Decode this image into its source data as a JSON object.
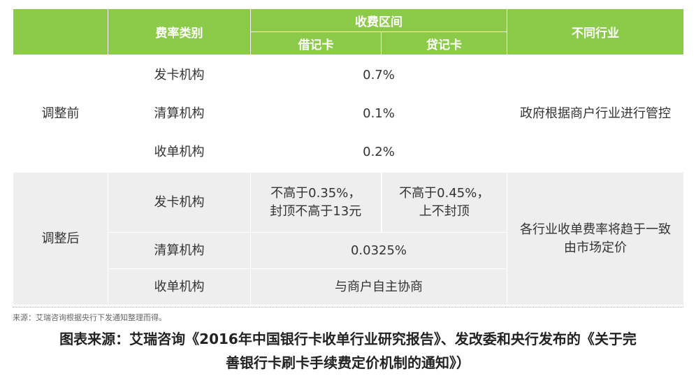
{
  "table": {
    "headers": {
      "fee_type": "费率类别",
      "fee_range": "收费区间",
      "debit": "借记卡",
      "credit": "贷记卡",
      "industry": "不同行业"
    },
    "before": {
      "label": "调整前",
      "rows": [
        {
          "org": "发卡机构",
          "rate": "0.7%"
        },
        {
          "org": "清算机构",
          "rate": "0.1%"
        },
        {
          "org": "收单机构",
          "rate": "0.2%"
        }
      ],
      "industry": "政府根据商户行业进行管控"
    },
    "after": {
      "label": "调整后",
      "issuer": {
        "org": "发卡机构",
        "debit_line1": "不高于0.35%，",
        "debit_line2": "封顶不高于13元",
        "credit_line1": "不高于0.45%，",
        "credit_line2": "上不封顶"
      },
      "clearing": {
        "org": "清算机构",
        "rate": "0.0325%"
      },
      "acquirer": {
        "org": "收单机构",
        "rate": "与商户自主协商"
      },
      "industry_line1": "各行业收单费率将趋于一致",
      "industry_line2": "由市场定价"
    }
  },
  "source_note": "来源：艾瑞咨询根据央行下发通知整理而得。",
  "caption_line1": "图表来源：艾瑞咨询《2016年中国银行卡收单行业研究报告》、发改委和央行发布的《关于完",
  "caption_line2": "善银行卡刷卡手续费定价机制的通知》）"
}
